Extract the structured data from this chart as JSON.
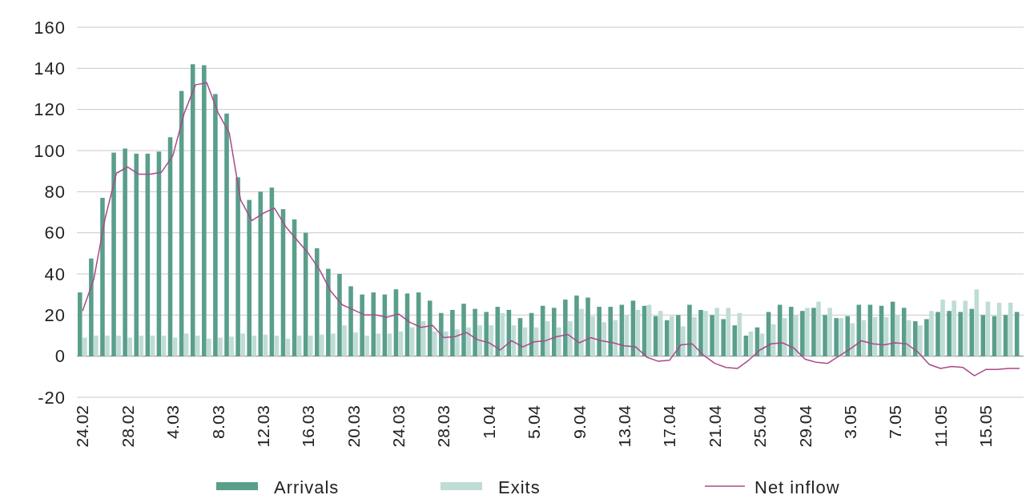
{
  "chart_data": {
    "type": "bar",
    "categories": [
      "24.02",
      null,
      null,
      null,
      "28.02",
      null,
      null,
      null,
      "4.03",
      null,
      null,
      null,
      "8.03",
      null,
      null,
      null,
      "12.03",
      null,
      null,
      null,
      "16.03",
      null,
      null,
      null,
      "20.03",
      null,
      null,
      null,
      "24.03",
      null,
      null,
      null,
      "28.03",
      null,
      null,
      null,
      "1.04",
      null,
      null,
      null,
      "5.04",
      null,
      null,
      null,
      "9.04",
      null,
      null,
      null,
      "13.04",
      null,
      null,
      null,
      "17.04",
      null,
      null,
      null,
      "21.04",
      null,
      null,
      null,
      "25.04",
      null,
      null,
      null,
      "29.04",
      null,
      null,
      null,
      "3.05",
      null,
      null,
      null,
      "7.05",
      null,
      null,
      null,
      "11.05",
      null,
      null,
      null,
      "15.05",
      null,
      null,
      null
    ],
    "series": [
      {
        "name": "Arrivals",
        "color": "#5a9e8c",
        "values": [
          31,
          47.5,
          77,
          99,
          101,
          98.5,
          98.5,
          99.5,
          106.5,
          129,
          142,
          141.5,
          127.5,
          118,
          87,
          76,
          80,
          82,
          71.5,
          66.5,
          60,
          52.5,
          42.5,
          40,
          34,
          30,
          31,
          30,
          32.5,
          30.5,
          31,
          27,
          21,
          22.5,
          25.5,
          23,
          21.5,
          24,
          22.5,
          18.5,
          21,
          24.5,
          23.5,
          27.5,
          29.5,
          28.5,
          24,
          24,
          25,
          27,
          24.5,
          19.5,
          17.5,
          20,
          25,
          22.5,
          20,
          18,
          15,
          10,
          14,
          21.5,
          25,
          24,
          22,
          23.5,
          20,
          18.5,
          19.5,
          25,
          25,
          24.5,
          26.5,
          23.5,
          17,
          18,
          21.5,
          22,
          21.5,
          23,
          20,
          19.5,
          20,
          21.5
        ]
      },
      {
        "name": "Exits",
        "color": "#bfdcd5",
        "values": [
          9,
          10,
          10,
          10,
          9,
          10,
          10,
          10,
          9,
          11,
          10,
          8.5,
          9,
          9.5,
          11,
          10,
          10.5,
          10,
          8.5,
          10,
          10,
          10.5,
          11,
          15,
          11.5,
          10,
          11,
          11,
          12,
          14,
          17,
          12,
          12,
          13,
          14,
          15,
          15,
          21,
          15,
          14,
          14,
          17,
          14,
          17,
          23,
          19.5,
          16.5,
          17.5,
          20,
          22.5,
          25,
          22,
          19.5,
          14.5,
          19,
          22,
          23.5,
          23.5,
          21,
          12,
          11,
          15.5,
          18.5,
          20,
          23.5,
          26.5,
          23.5,
          18.5,
          16,
          17.5,
          19,
          19,
          20,
          17.5,
          15,
          22,
          27.5,
          27,
          27,
          32.5,
          26.5,
          26,
          26,
          null
        ]
      },
      {
        "name": "Net inflow",
        "type": "line",
        "color": "#a84a88",
        "values": [
          22,
          37.5,
          67,
          89,
          92,
          88.5,
          88.5,
          89.5,
          97.5,
          118,
          132,
          133,
          118.5,
          108.5,
          76,
          66,
          69.5,
          72,
          63,
          56.5,
          50,
          42,
          31.5,
          25,
          22.5,
          20,
          20,
          19,
          20.5,
          16.5,
          14,
          15,
          9,
          9.5,
          11.5,
          8,
          6.5,
          3,
          7.5,
          4.5,
          7,
          7.5,
          9.5,
          10.5,
          6.5,
          9,
          7.5,
          6.5,
          5,
          4.5,
          -0.5,
          -2.5,
          -2,
          5.5,
          6,
          0.5,
          -3.5,
          -5.5,
          -6,
          -2,
          3,
          6,
          6.5,
          4,
          -1.5,
          -3,
          -3.5,
          0,
          3.5,
          7.5,
          6,
          5.5,
          6.5,
          6,
          2,
          -4,
          -6,
          -5,
          -5.5,
          -9.5,
          -6.5,
          -6.5,
          -6,
          -6
        ]
      }
    ],
    "ylim": [
      -20,
      160
    ],
    "yticks": [
      -20,
      0,
      20,
      40,
      60,
      80,
      100,
      120,
      140,
      160
    ],
    "grid": "y",
    "legend": "bottom",
    "marker": "none",
    "line_style": "solid"
  }
}
